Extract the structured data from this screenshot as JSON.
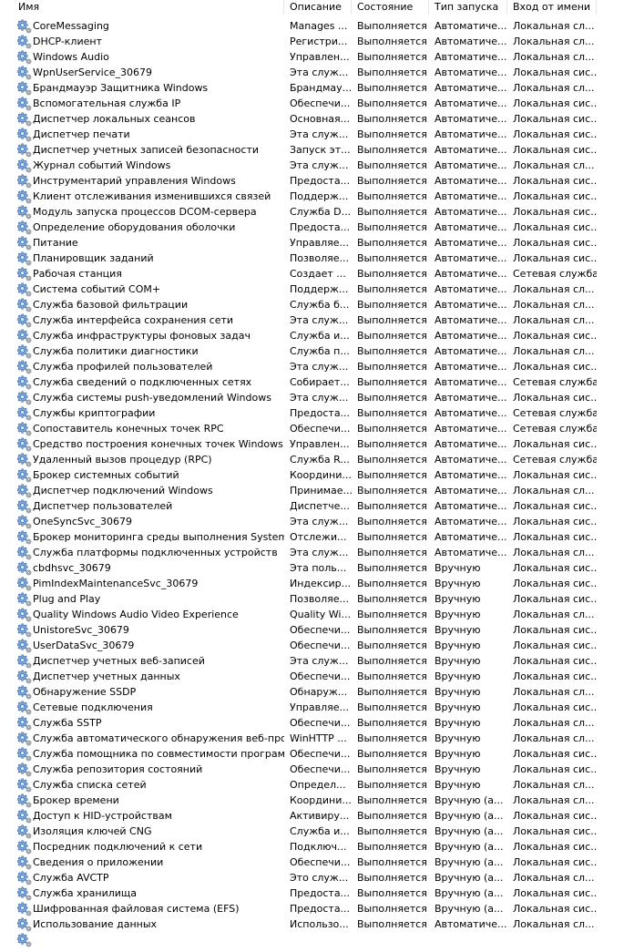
{
  "columns": [
    "Имя",
    "Описание",
    "Состояние",
    "Тип запуска",
    "Вход от имени"
  ],
  "row_icon": "service-gear-icon",
  "rows": [
    [
      "CoreMessaging",
      "Manages ...",
      "Выполняется",
      "Автоматиче...",
      "Локальная сл..."
    ],
    [
      "DHCP-клиент",
      "Регистри...",
      "Выполняется",
      "Автоматиче...",
      "Локальная сл..."
    ],
    [
      "Windows Audio",
      "Управлен...",
      "Выполняется",
      "Автоматиче...",
      "Локальная сл..."
    ],
    [
      "WpnUserService_30679",
      "Эта служ...",
      "Выполняется",
      "Автоматиче...",
      "Локальная сис..."
    ],
    [
      "Брандмауэр Защитника Windows",
      "Брандмау...",
      "Выполняется",
      "Автоматиче...",
      "Локальная сл..."
    ],
    [
      "Вспомогательная служба IP",
      "Обеспечи...",
      "Выполняется",
      "Автоматиче...",
      "Локальная сис..."
    ],
    [
      "Диспетчер локальных сеансов",
      "Основная...",
      "Выполняется",
      "Автоматиче...",
      "Локальная сис..."
    ],
    [
      "Диспетчер печати",
      "Эта служ...",
      "Выполняется",
      "Автоматиче...",
      "Локальная сис..."
    ],
    [
      "Диспетчер учетных записей безопасности",
      "Запуск эт...",
      "Выполняется",
      "Автоматиче...",
      "Локальная сис..."
    ],
    [
      "Журнал событий Windows",
      "Эта служ...",
      "Выполняется",
      "Автоматиче...",
      "Локальная сл..."
    ],
    [
      "Инструментарий управления Windows",
      "Предоста...",
      "Выполняется",
      "Автоматиче...",
      "Локальная сис..."
    ],
    [
      "Клиент отслеживания изменившихся связей",
      "Поддерж...",
      "Выполняется",
      "Автоматиче...",
      "Локальная сис..."
    ],
    [
      "Модуль запуска процессов DCOM-сервера",
      "Служба D...",
      "Выполняется",
      "Автоматиче...",
      "Локальная сис..."
    ],
    [
      "Определение оборудования оболочки",
      "Предоста...",
      "Выполняется",
      "Автоматиче...",
      "Локальная сис..."
    ],
    [
      "Питание",
      "Управляе...",
      "Выполняется",
      "Автоматиче...",
      "Локальная сис..."
    ],
    [
      "Планировщик заданий",
      "Позволяе...",
      "Выполняется",
      "Автоматиче...",
      "Локальная сис..."
    ],
    [
      "Рабочая станция",
      "Создает ...",
      "Выполняется",
      "Автоматиче...",
      "Сетевая служба"
    ],
    [
      "Система событий COM+",
      "Поддерж...",
      "Выполняется",
      "Автоматиче...",
      "Локальная сл..."
    ],
    [
      "Служба базовой фильтрации",
      "Служба б...",
      "Выполняется",
      "Автоматиче...",
      "Локальная сл..."
    ],
    [
      "Служба интерфейса сохранения сети",
      "Эта служ...",
      "Выполняется",
      "Автоматиче...",
      "Локальная сл..."
    ],
    [
      "Служба инфраструктуры фоновых задач",
      "Служба и...",
      "Выполняется",
      "Автоматиче...",
      "Локальная сис..."
    ],
    [
      "Служба политики диагностики",
      "Служба п...",
      "Выполняется",
      "Автоматиче...",
      "Локальная сл..."
    ],
    [
      "Служба профилей пользователей",
      "Эта служ...",
      "Выполняется",
      "Автоматиче...",
      "Локальная сис..."
    ],
    [
      "Служба сведений о подключенных сетях",
      "Собирает...",
      "Выполняется",
      "Автоматиче...",
      "Сетевая служба"
    ],
    [
      "Служба системы push-уведомлений Windows",
      "Эта служ...",
      "Выполняется",
      "Автоматиче...",
      "Локальная сис..."
    ],
    [
      "Службы криптографии",
      "Предоста...",
      "Выполняется",
      "Автоматиче...",
      "Сетевая служба"
    ],
    [
      "Сопоставитель конечных точек RPC",
      "Обеспечи...",
      "Выполняется",
      "Автоматиче...",
      "Сетевая служба"
    ],
    [
      "Средство построения конечных точек Windows Audio",
      "Управлен...",
      "Выполняется",
      "Автоматиче...",
      "Локальная сис..."
    ],
    [
      "Удаленный вызов процедур (RPC)",
      "Служба R...",
      "Выполняется",
      "Автоматиче...",
      "Сетевая служба"
    ],
    [
      "Брокер системных событий",
      "Координи...",
      "Выполняется",
      "Автоматиче...",
      "Локальная сис..."
    ],
    [
      "Диспетчер подключений Windows",
      "Принимае...",
      "Выполняется",
      "Автоматиче...",
      "Локальная сл..."
    ],
    [
      "Диспетчер пользователей",
      "Диспетче...",
      "Выполняется",
      "Автоматиче...",
      "Локальная сис..."
    ],
    [
      "OneSyncSvc_30679",
      "Эта служ...",
      "Выполняется",
      "Автоматиче...",
      "Локальная сис..."
    ],
    [
      "Брокер мониторинга среды выполнения System Guard",
      "Отслежи...",
      "Выполняется",
      "Автоматиче...",
      "Локальная сис..."
    ],
    [
      "Служба платформы подключенных устройств",
      "Эта служ...",
      "Выполняется",
      "Автоматиче...",
      "Локальная сл..."
    ],
    [
      "cbdhsvc_30679",
      "Эта поль...",
      "Выполняется",
      "Вручную",
      "Локальная сис..."
    ],
    [
      "PimIndexMaintenanceSvc_30679",
      "Индексир...",
      "Выполняется",
      "Вручную",
      "Локальная сис..."
    ],
    [
      "Plug and Play",
      "Позволяе...",
      "Выполняется",
      "Вручную",
      "Локальная сис..."
    ],
    [
      "Quality Windows Audio Video Experience",
      "Quality Wi...",
      "Выполняется",
      "Вручную",
      "Локальная сл..."
    ],
    [
      "UnistoreSvc_30679",
      "Обеспечи...",
      "Выполняется",
      "Вручную",
      "Локальная сис..."
    ],
    [
      "UserDataSvc_30679",
      "Обеспечи...",
      "Выполняется",
      "Вручную",
      "Локальная сис..."
    ],
    [
      "Диспетчер учетных веб-записей",
      "Эта служ...",
      "Выполняется",
      "Вручную",
      "Локальная сис..."
    ],
    [
      "Диспетчер учетных данных",
      "Обеспечи...",
      "Выполняется",
      "Вручную",
      "Локальная сис..."
    ],
    [
      "Обнаружение SSDP",
      "Обнаруж...",
      "Выполняется",
      "Вручную",
      "Локальная сл..."
    ],
    [
      "Сетевые подключения",
      "Управляе...",
      "Выполняется",
      "Вручную",
      "Локальная сис..."
    ],
    [
      "Служба SSTP",
      "Обеспечи...",
      "Выполняется",
      "Вручную",
      "Локальная сл..."
    ],
    [
      "Служба автоматического обнаружения веб-прокси...",
      "WinHTTP ...",
      "Выполняется",
      "Вручную",
      "Локальная сл..."
    ],
    [
      "Служба помощника по совместимости программ",
      "Обеспечи...",
      "Выполняется",
      "Вручную",
      "Локальная сис..."
    ],
    [
      "Служба репозитория состояний",
      "Обеспечи...",
      "Выполняется",
      "Вручную",
      "Локальная сис..."
    ],
    [
      "Служба списка сетей",
      "Определ...",
      "Выполняется",
      "Вручную",
      "Локальная сл..."
    ],
    [
      "Брокер времени",
      "Координи...",
      "Выполняется",
      "Вручную (а...",
      "Локальная сл..."
    ],
    [
      "Доступ к HID-устройствам",
      "Активиру...",
      "Выполняется",
      "Вручную (а...",
      "Локальная сис..."
    ],
    [
      "Изоляция ключей CNG",
      "Служба и...",
      "Выполняется",
      "Вручную (а...",
      "Локальная сис..."
    ],
    [
      "Посредник подключений к сети",
      "Подключ...",
      "Выполняется",
      "Вручную (а...",
      "Локальная сис..."
    ],
    [
      "Сведения о приложении",
      "Обеспечи...",
      "Выполняется",
      "Вручную (а...",
      "Локальная сис..."
    ],
    [
      "Служба AVCTP",
      "Это служ...",
      "Выполняется",
      "Вручную (а...",
      "Локальная сл..."
    ],
    [
      "Служба хранилища",
      "Предоста...",
      "Выполняется",
      "Вручную (а...",
      "Локальная сис..."
    ],
    [
      "Шифрованная файловая система (EFS)",
      "Предоста...",
      "Выполняется",
      "Вручную (а...",
      "Локальная сис..."
    ],
    [
      "Использование данных",
      "Использо...",
      "Выполняется",
      "Автоматиче...",
      "Локальная сл..."
    ]
  ]
}
